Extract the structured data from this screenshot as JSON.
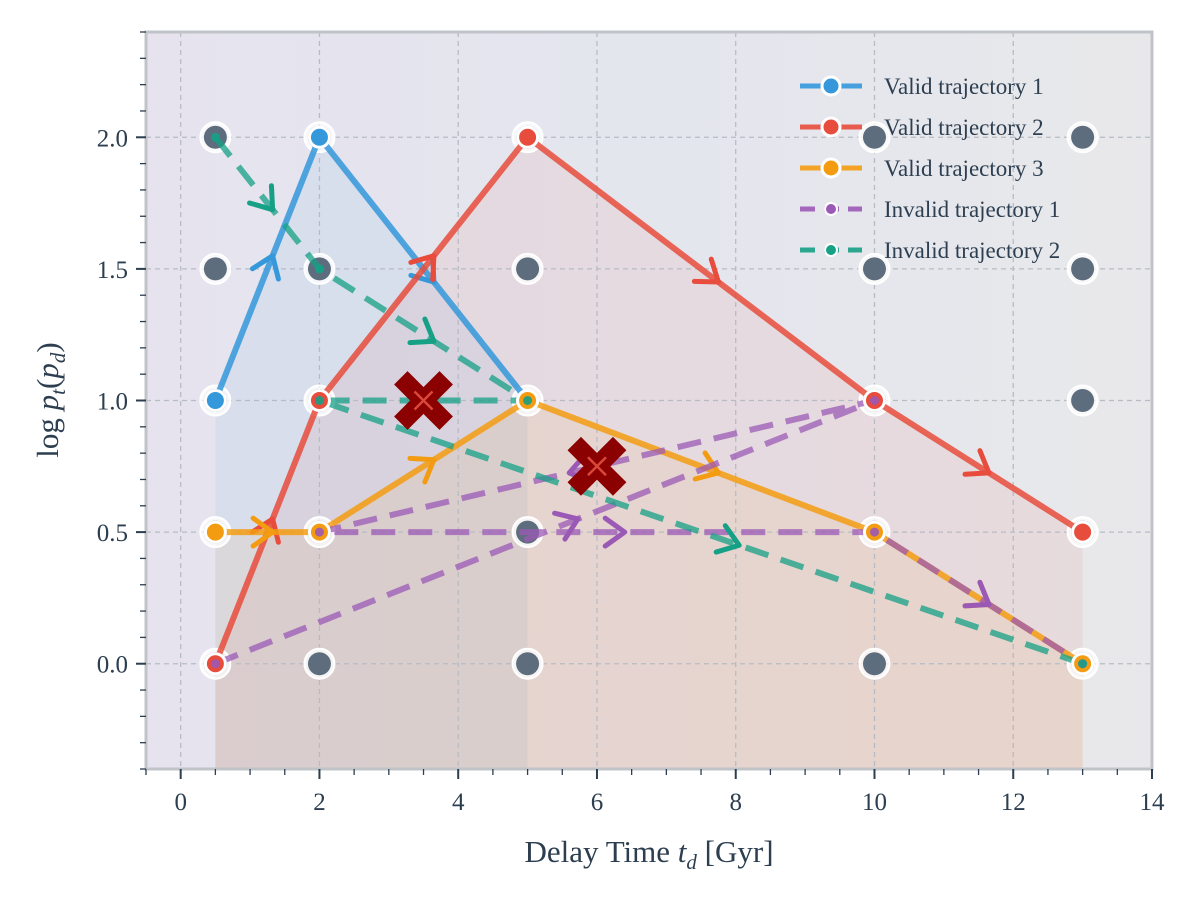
{
  "chart_data": {
    "type": "line",
    "xlabel_text": "Delay Time ",
    "xlabel_var": "t",
    "xlabel_sub": "d",
    "xlabel_unit": " [Gyr]",
    "ylabel_prefix": "log ",
    "ylabel_var": "p",
    "ylabel_sub1": "t",
    "ylabel_sub2": "d",
    "xlim": [
      -0.5,
      14
    ],
    "ylim": [
      -0.4,
      2.4
    ],
    "xticks": [
      0,
      2,
      4,
      6,
      8,
      10,
      12,
      14
    ],
    "xtick_labels": [
      "0",
      "2",
      "4",
      "6",
      "8",
      "10",
      "12",
      "14"
    ],
    "yticks": [
      0.0,
      0.5,
      1.0,
      1.5,
      2.0
    ],
    "ytick_labels": [
      "0.0",
      "0.5",
      "1.0",
      "1.5",
      "2.0"
    ],
    "grid": true,
    "legend_position": "top-right",
    "grid_nodes_x": [
      0.5,
      2,
      5,
      10,
      13
    ],
    "grid_nodes_y": [
      0,
      0.5,
      1,
      1.5,
      2
    ],
    "series": [
      {
        "name": "Valid trajectory 1",
        "style": "solid",
        "color": "#3498db",
        "points": [
          [
            0.5,
            1.0
          ],
          [
            2,
            2.0
          ],
          [
            5,
            1.0
          ]
        ]
      },
      {
        "name": "Valid trajectory 2",
        "style": "solid",
        "color": "#e74c3c",
        "points": [
          [
            0.5,
            0.0
          ],
          [
            2,
            1.0
          ],
          [
            5,
            2.0
          ],
          [
            10,
            1.0
          ],
          [
            13,
            0.5
          ]
        ]
      },
      {
        "name": "Valid trajectory 3",
        "style": "solid",
        "color": "#f39c12",
        "points": [
          [
            0.5,
            0.5
          ],
          [
            2,
            0.5
          ],
          [
            5,
            1.0
          ],
          [
            10,
            0.5
          ],
          [
            13,
            0.0
          ]
        ]
      },
      {
        "name": "Invalid trajectory 1",
        "style": "dashed",
        "color": "#9b59b6",
        "points": [
          [
            0.5,
            0.0
          ],
          [
            10,
            1.0
          ],
          [
            2,
            0.5
          ],
          [
            10,
            0.5
          ],
          [
            13,
            0.0
          ]
        ]
      },
      {
        "name": "Invalid trajectory 2",
        "style": "dashed",
        "color": "#16a085",
        "points": [
          [
            0.5,
            2.0
          ],
          [
            2,
            1.5
          ],
          [
            5,
            1.0
          ],
          [
            2,
            1.0
          ],
          [
            13,
            0.0
          ]
        ]
      }
    ],
    "violations": [
      [
        3.5,
        1.0
      ],
      [
        6.0,
        0.75
      ]
    ],
    "colors": {
      "background": "#e8e8ee",
      "node": "#5d6d7e",
      "violation": "#8b0000",
      "axis": "#c0c4c8",
      "text": "#2c3e50"
    }
  }
}
